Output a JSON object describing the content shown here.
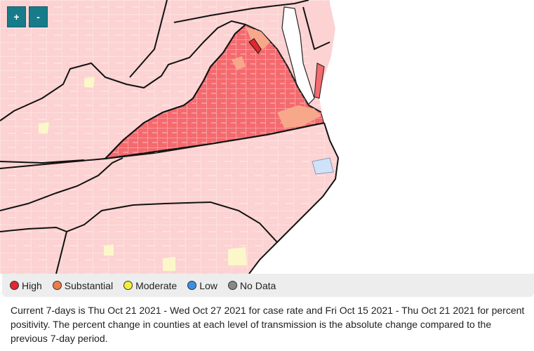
{
  "zoom": {
    "in_label": "+",
    "out_label": "-"
  },
  "legend": {
    "items": [
      {
        "label": "High",
        "color": "#e3262f"
      },
      {
        "label": "Substantial",
        "color": "#f07a4a"
      },
      {
        "label": "Moderate",
        "color": "#f3ef3a"
      },
      {
        "label": "Low",
        "color": "#3a8fe6"
      },
      {
        "label": "No Data",
        "color": "#888888"
      }
    ]
  },
  "footnote": "Current 7-days is Thu Oct 21 2021 - Wed Oct 27 2021 for case rate and Fri Oct 15 2021 - Thu Oct 21 2021 for percent positivity. The percent change in counties at each level of transmission is the absolute change compared to the previous 7-day period.",
  "map_colors": {
    "high": "#f46a6e",
    "substantial": "#f7a88a",
    "light": "#fcd2d2",
    "moderate": "#fbf7c9",
    "low": "#cfe2f7",
    "water": "#ffffff"
  }
}
